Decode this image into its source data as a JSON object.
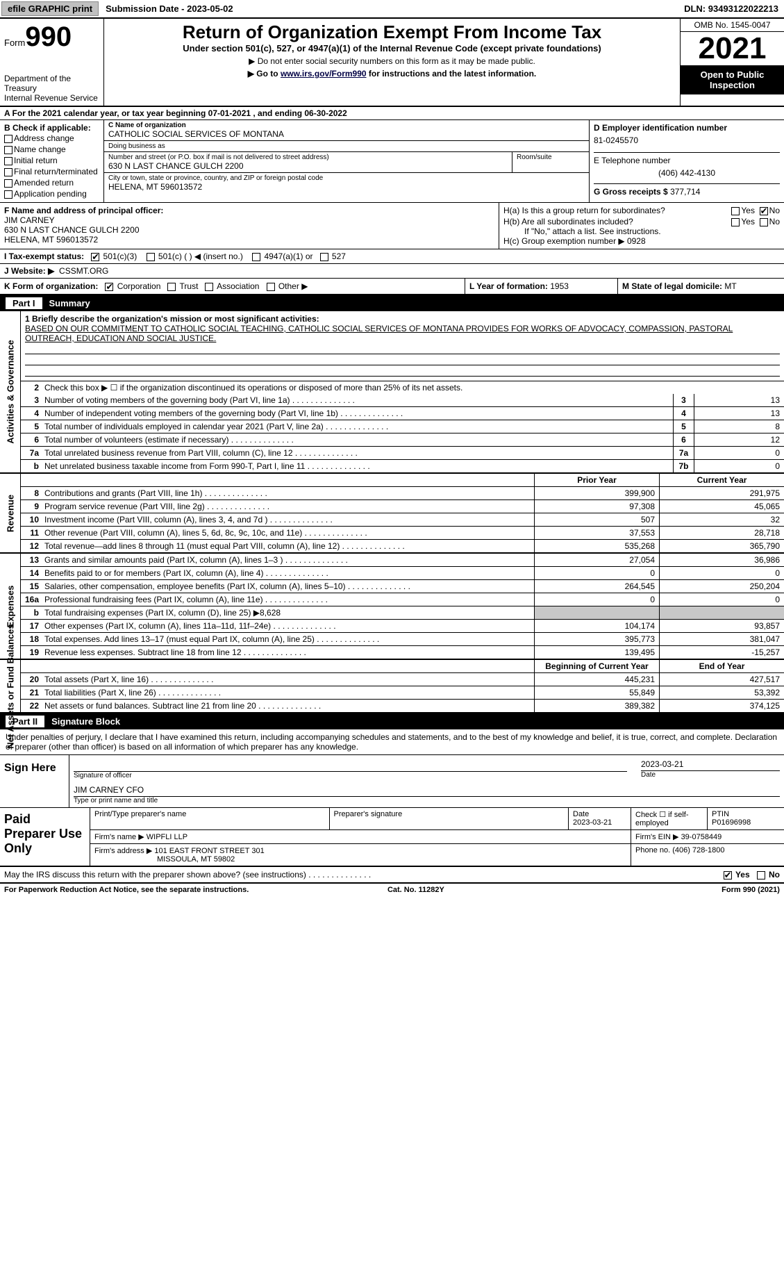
{
  "topbar": {
    "efile": "efile GRAPHIC print",
    "submission_label": "Submission Date - ",
    "submission_date": "2023-05-02",
    "dln_label": "DLN: ",
    "dln": "93493122022213"
  },
  "header": {
    "form_label": "Form",
    "form_num": "990",
    "dept": "Department of the Treasury\nInternal Revenue Service",
    "title": "Return of Organization Exempt From Income Tax",
    "subtitle": "Under section 501(c), 527, or 4947(a)(1) of the Internal Revenue Code (except private foundations)",
    "note1": "▶ Do not enter social security numbers on this form as it may be made public.",
    "note2_pre": "▶ Go to ",
    "note2_link": "www.irs.gov/Form990",
    "note2_post": " for instructions and the latest information.",
    "omb": "OMB No. 1545-0047",
    "year": "2021",
    "open": "Open to Public Inspection"
  },
  "row_a": "A For the 2021 calendar year, or tax year beginning 07-01-2021   , and ending 06-30-2022",
  "b": {
    "label": "B Check if applicable:",
    "opts": [
      "Address change",
      "Name change",
      "Initial return",
      "Final return/terminated",
      "Amended return",
      "Application pending"
    ]
  },
  "c": {
    "name_label": "C Name of organization",
    "name": "CATHOLIC SOCIAL SERVICES OF MONTANA",
    "dba_label": "Doing business as",
    "dba": "",
    "addr_label": "Number and street (or P.O. box if mail is not delivered to street address)",
    "addr": "630 N LAST CHANCE GULCH 2200",
    "room_label": "Room/suite",
    "city_label": "City or town, state or province, country, and ZIP or foreign postal code",
    "city": "HELENA, MT  596013572"
  },
  "d": {
    "label": "D Employer identification number",
    "ein": "81-0245570",
    "e_label": "E Telephone number",
    "phone": "(406) 442-4130",
    "g_label": "G Gross receipts $ ",
    "g": "377,714"
  },
  "f": {
    "label": "F Name and address of principal officer:",
    "name": "JIM CARNEY",
    "addr1": "630 N LAST CHANCE GULCH 2200",
    "addr2": "HELENA, MT  596013572"
  },
  "h": {
    "a": "H(a)  Is this a group return for subordinates?",
    "b": "H(b)  Are all subordinates included?",
    "b_note": "If \"No,\" attach a list. See instructions.",
    "c": "H(c)  Group exemption number ▶  0928"
  },
  "i": {
    "label": "I  Tax-exempt status:",
    "o1": "501(c)(3)",
    "o2": "501(c) (   ) ◀ (insert no.)",
    "o3": "4947(a)(1) or",
    "o4": "527"
  },
  "j": {
    "label": "J  Website: ▶",
    "val": "CSSMT.ORG"
  },
  "k": {
    "label": "K Form of organization:",
    "o1": "Corporation",
    "o2": "Trust",
    "o3": "Association",
    "o4": "Other ▶"
  },
  "l": {
    "label": "L Year of formation: ",
    "val": "1953"
  },
  "m": {
    "label": "M State of legal domicile: ",
    "val": "MT"
  },
  "parts": {
    "p1_num": "Part I",
    "p1_title": "Summary",
    "p2_num": "Part II",
    "p2_title": "Signature Block"
  },
  "summary": {
    "sections": {
      "gov": "Activities & Governance",
      "rev": "Revenue",
      "exp": "Expenses",
      "net": "Net Assets or Fund Balances"
    },
    "mission_label": "1  Briefly describe the organization's mission or most significant activities:",
    "mission": "BASED ON OUR COMMITMENT TO CATHOLIC SOCIAL TEACHING, CATHOLIC SOCIAL SERVICES OF MONTANA PROVIDES FOR WORKS OF ADVOCACY, COMPASSION, PASTORAL OUTREACH, EDUCATION AND SOCIAL JUSTICE.",
    "line2": "Check this box ▶ ☐ if the organization discontinued its operations or disposed of more than 25% of its net assets.",
    "gov_rows": [
      {
        "n": "3",
        "d": "Number of voting members of the governing body (Part VI, line 1a)",
        "box": "3",
        "v": "13"
      },
      {
        "n": "4",
        "d": "Number of independent voting members of the governing body (Part VI, line 1b)",
        "box": "4",
        "v": "13"
      },
      {
        "n": "5",
        "d": "Total number of individuals employed in calendar year 2021 (Part V, line 2a)",
        "box": "5",
        "v": "8"
      },
      {
        "n": "6",
        "d": "Total number of volunteers (estimate if necessary)",
        "box": "6",
        "v": "12"
      },
      {
        "n": "7a",
        "d": "Total unrelated business revenue from Part VIII, column (C), line 12",
        "box": "7a",
        "v": "0"
      },
      {
        "n": "b",
        "d": "Net unrelated business taxable income from Form 990-T, Part I, line 11",
        "box": "7b",
        "v": "0"
      }
    ],
    "col_prior": "Prior Year",
    "col_current": "Current Year",
    "rev_rows": [
      {
        "n": "8",
        "d": "Contributions and grants (Part VIII, line 1h)",
        "p": "399,900",
        "c": "291,975"
      },
      {
        "n": "9",
        "d": "Program service revenue (Part VIII, line 2g)",
        "p": "97,308",
        "c": "45,065"
      },
      {
        "n": "10",
        "d": "Investment income (Part VIII, column (A), lines 3, 4, and 7d )",
        "p": "507",
        "c": "32"
      },
      {
        "n": "11",
        "d": "Other revenue (Part VIII, column (A), lines 5, 6d, 8c, 9c, 10c, and 11e)",
        "p": "37,553",
        "c": "28,718"
      },
      {
        "n": "12",
        "d": "Total revenue—add lines 8 through 11 (must equal Part VIII, column (A), line 12)",
        "p": "535,268",
        "c": "365,790"
      }
    ],
    "exp_rows": [
      {
        "n": "13",
        "d": "Grants and similar amounts paid (Part IX, column (A), lines 1–3 )",
        "p": "27,054",
        "c": "36,986"
      },
      {
        "n": "14",
        "d": "Benefits paid to or for members (Part IX, column (A), line 4)",
        "p": "0",
        "c": "0"
      },
      {
        "n": "15",
        "d": "Salaries, other compensation, employee benefits (Part IX, column (A), lines 5–10)",
        "p": "264,545",
        "c": "250,204"
      },
      {
        "n": "16a",
        "d": "Professional fundraising fees (Part IX, column (A), line 11e)",
        "p": "0",
        "c": "0"
      },
      {
        "n": "b",
        "d": "Total fundraising expenses (Part IX, column (D), line 25) ▶8,628",
        "p": "",
        "c": "",
        "grey": true
      },
      {
        "n": "17",
        "d": "Other expenses (Part IX, column (A), lines 11a–11d, 11f–24e)",
        "p": "104,174",
        "c": "93,857"
      },
      {
        "n": "18",
        "d": "Total expenses. Add lines 13–17 (must equal Part IX, column (A), line 25)",
        "p": "395,773",
        "c": "381,047"
      },
      {
        "n": "19",
        "d": "Revenue less expenses. Subtract line 18 from line 12",
        "p": "139,495",
        "c": "-15,257"
      }
    ],
    "col_begin": "Beginning of Current Year",
    "col_end": "End of Year",
    "net_rows": [
      {
        "n": "20",
        "d": "Total assets (Part X, line 16)",
        "p": "445,231",
        "c": "427,517"
      },
      {
        "n": "21",
        "d": "Total liabilities (Part X, line 26)",
        "p": "55,849",
        "c": "53,392"
      },
      {
        "n": "22",
        "d": "Net assets or fund balances. Subtract line 21 from line 20",
        "p": "389,382",
        "c": "374,125"
      }
    ]
  },
  "sig": {
    "decl": "Under penalties of perjury, I declare that I have examined this return, including accompanying schedules and statements, and to the best of my knowledge and belief, it is true, correct, and complete. Declaration of preparer (other than officer) is based on all information of which preparer has any knowledge.",
    "sign_here": "Sign Here",
    "sig_of_officer": "Signature of officer",
    "date": "2023-03-21",
    "date_label": "Date",
    "officer": "JIM CARNEY CFO",
    "officer_label": "Type or print name and title",
    "paid": "Paid Preparer Use Only",
    "h_prep": "Print/Type preparer's name",
    "h_sig": "Preparer's signature",
    "h_date": "Date",
    "h_date_v": "2023-03-21",
    "h_self": "Check ☐ if self-employed",
    "h_ptin": "PTIN",
    "ptin": "P01696998",
    "firm_name_l": "Firm's name   ▶",
    "firm_name": "WIPFLI LLP",
    "firm_ein_l": "Firm's EIN ▶",
    "firm_ein": "39-0758449",
    "firm_addr_l": "Firm's address ▶",
    "firm_addr": "101 EAST FRONT STREET 301",
    "firm_city": "MISSOULA, MT  59802",
    "firm_phone_l": "Phone no.",
    "firm_phone": "(406) 728-1800",
    "may": "May the IRS discuss this return with the preparer shown above? (see instructions)",
    "yes": "Yes",
    "no": "No"
  },
  "footer": {
    "pra": "For Paperwork Reduction Act Notice, see the separate instructions.",
    "cat": "Cat. No. 11282Y",
    "form": "Form 990 (2021)"
  }
}
